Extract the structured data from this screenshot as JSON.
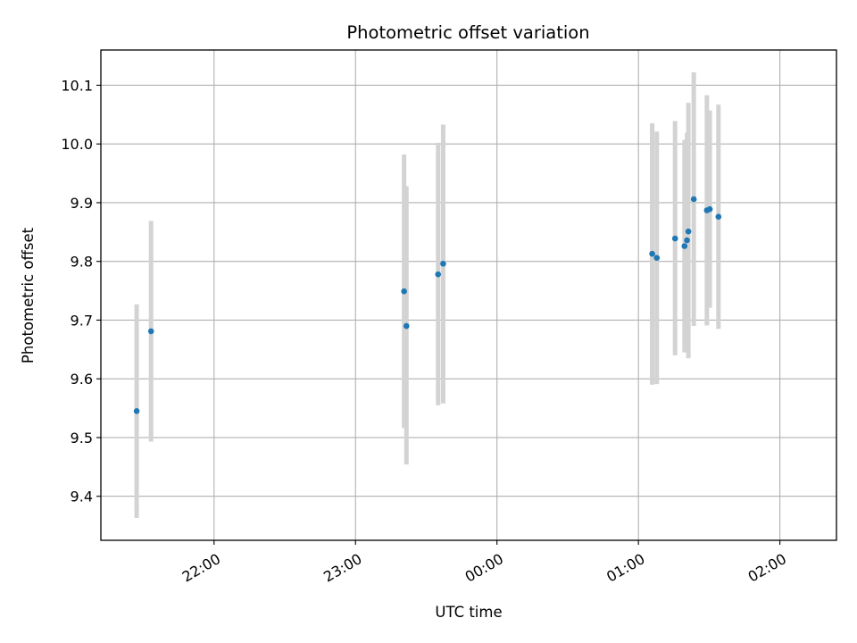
{
  "chart_data": {
    "type": "scatter",
    "title": "Photometric offset variation",
    "xlabel": "UTC time",
    "ylabel": "Photometric offset",
    "x_is_time": true,
    "xlim": [
      "21:12",
      "02:24"
    ],
    "ylim": [
      9.325,
      10.16
    ],
    "x_ticks": [
      "22:00",
      "23:00",
      "00:00",
      "01:00",
      "02:00"
    ],
    "y_ticks": [
      9.4,
      9.5,
      9.6,
      9.7,
      9.8,
      9.9,
      10.0,
      10.1
    ],
    "grid": true,
    "marker_color": "#1f77b4",
    "errorbar_color": "#d3d3d3",
    "points": [
      {
        "t": "21:27:11",
        "y": 9.545,
        "lo": 9.363,
        "hi": 9.727
      },
      {
        "t": "21:33:17",
        "y": 9.681,
        "lo": 9.493,
        "hi": 9.869
      },
      {
        "t": "23:20:36",
        "y": 9.749,
        "lo": 9.516,
        "hi": 9.982
      },
      {
        "t": "23:21:36",
        "y": 9.69,
        "lo": 9.454,
        "hi": 9.928
      },
      {
        "t": "23:35:02",
        "y": 9.778,
        "lo": 9.555,
        "hi": 10.002
      },
      {
        "t": "23:37:11",
        "y": 9.796,
        "lo": 9.558,
        "hi": 10.033
      },
      {
        "t": "01:05:50",
        "y": 9.813,
        "lo": 9.59,
        "hi": 10.035
      },
      {
        "t": "01:07:48",
        "y": 9.806,
        "lo": 9.591,
        "hi": 10.021
      },
      {
        "t": "01:15:33",
        "y": 9.839,
        "lo": 9.64,
        "hi": 10.039
      },
      {
        "t": "01:19:33",
        "y": 9.826,
        "lo": 9.645,
        "hi": 10.007
      },
      {
        "t": "01:20:36",
        "y": 9.836,
        "lo": 9.653,
        "hi": 10.019
      },
      {
        "t": "01:21:11",
        "y": 9.851,
        "lo": 9.635,
        "hi": 10.07
      },
      {
        "t": "01:23:29",
        "y": 9.906,
        "lo": 9.69,
        "hi": 10.122
      },
      {
        "t": "01:29:02",
        "y": 9.887,
        "lo": 9.691,
        "hi": 10.083
      },
      {
        "t": "01:30:16",
        "y": 9.889,
        "lo": 9.721,
        "hi": 10.057
      },
      {
        "t": "01:33:57",
        "y": 9.876,
        "lo": 9.685,
        "hi": 10.067
      }
    ]
  }
}
